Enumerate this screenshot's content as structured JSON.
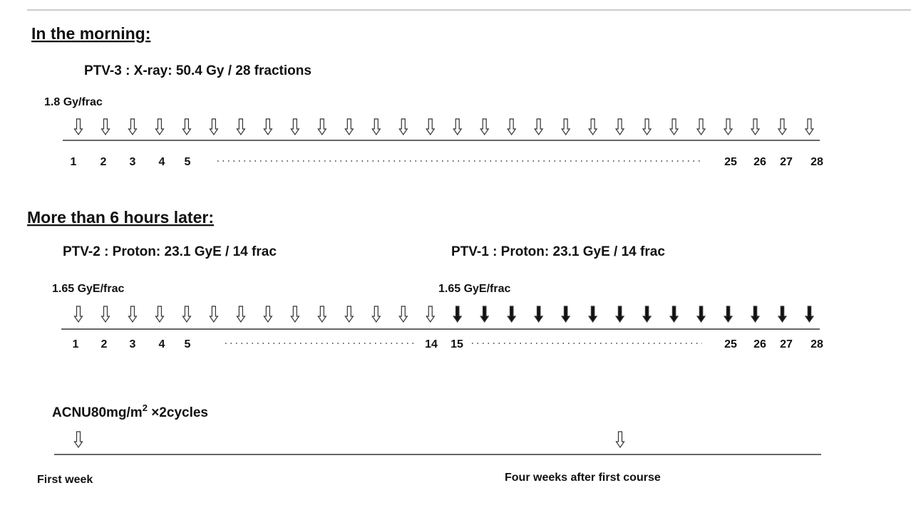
{
  "morning": {
    "heading": "In the morning:",
    "plan": "PTV-3 : X-ray: 50.4 Gy / 28 fractions",
    "dose": "1.8 Gy/frac",
    "fractions": [
      "1",
      "2",
      "3",
      "4",
      "5",
      "25",
      "26",
      "27",
      "28"
    ]
  },
  "later": {
    "heading": "More than 6 hours later:",
    "plans": [
      "PTV-2 : Proton: 23.1 GyE / 14 frac",
      "PTV-1 : Proton: 23.1 GyE / 14 frac"
    ],
    "doses": [
      "1.65 GyE/frac",
      "1.65 GyE/frac"
    ],
    "fractions": [
      "1",
      "2",
      "3",
      "4",
      "5",
      "14",
      "15",
      "25",
      "26",
      "27",
      "28"
    ]
  },
  "chemo": {
    "label": "ACNU80mg/m",
    "superscript": "2",
    "suffix": " ×2cycles",
    "timepoints": [
      "First week",
      "Four weeks after first course"
    ]
  }
}
